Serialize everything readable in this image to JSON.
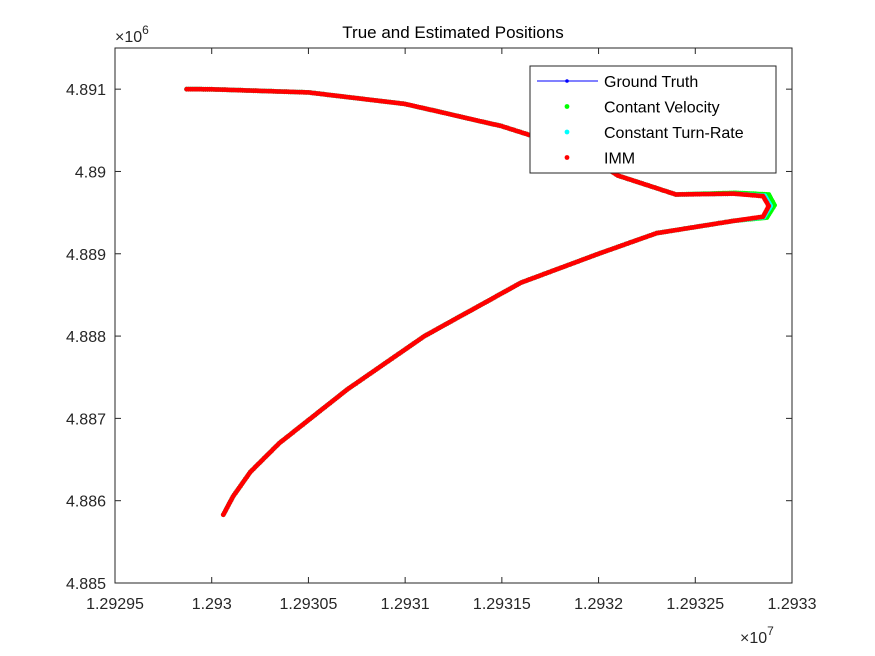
{
  "chart_data": {
    "type": "line",
    "title": "True and Estimated Positions",
    "xlabel": "",
    "ylabel": "",
    "x_exponent_label": "×10",
    "x_exponent_power": "7",
    "y_exponent_label": "×10",
    "y_exponent_power": "6",
    "xlim": [
      12929500.0,
      12933000.0
    ],
    "ylim": [
      4885000.0,
      4891500.0
    ],
    "x_ticks": [
      12929500.0,
      12930000.0,
      12930500.0,
      12931000.0,
      12931500.0,
      12932000.0,
      12932500.0,
      12933000.0
    ],
    "x_tick_labels": [
      "1.29295",
      "1.293",
      "1.29305",
      "1.2931",
      "1.29315",
      "1.2932",
      "1.29325",
      "1.2933"
    ],
    "y_ticks": [
      4885000.0,
      4886000.0,
      4887000.0,
      4888000.0,
      4889000.0,
      4890000.0,
      4891000.0
    ],
    "y_tick_labels": [
      "4.885",
      "4.886",
      "4.887",
      "4.888",
      "4.889",
      "4.89",
      "4.891"
    ],
    "grid": false,
    "legend_position": "top-right",
    "series": [
      {
        "name": "Ground Truth",
        "color": "#0000ff",
        "style": "line-with-dots",
        "x": [
          12929870,
          12930000,
          12930500,
          12931000,
          12931500,
          12931900,
          12932100,
          12932400,
          12932700,
          12932850,
          12932880,
          12932850,
          12932700,
          12932300,
          12932000,
          12931600,
          12931100,
          12930700,
          12930350,
          12930200,
          12930110,
          12930060
        ],
        "y": [
          4891000,
          4890998,
          4890960,
          4890820,
          4890550,
          4890250,
          4889950,
          4889720,
          4889730,
          4889700,
          4889580,
          4889450,
          4889400,
          4889250,
          4889000,
          4888650,
          4888000,
          4887350,
          4886700,
          4886350,
          4886050,
          4885830
        ]
      },
      {
        "name": "Contant Velocity",
        "color": "#00ff00",
        "style": "dots",
        "x": [
          12929870,
          12930000,
          12930500,
          12931000,
          12931500,
          12931900,
          12932100,
          12932400,
          12932710,
          12932880,
          12932910,
          12932870,
          12932700,
          12932300,
          12932000,
          12931600,
          12931100,
          12930700,
          12930350,
          12930200,
          12930110,
          12930060
        ],
        "y": [
          4891000,
          4890998,
          4890960,
          4890820,
          4890550,
          4890250,
          4889950,
          4889720,
          4889740,
          4889720,
          4889590,
          4889440,
          4889400,
          4889250,
          4889000,
          4888650,
          4888000,
          4887350,
          4886700,
          4886350,
          4886050,
          4885830
        ]
      },
      {
        "name": "Constant Turn-Rate",
        "color": "#00ffff",
        "style": "dots",
        "x": [
          12929870,
          12930000,
          12930500,
          12931000,
          12931500,
          12931900,
          12932100,
          12932400,
          12932700,
          12932860,
          12932890,
          12932855,
          12932700,
          12932300,
          12932000,
          12931600,
          12931100,
          12930700,
          12930350,
          12930200,
          12930110,
          12930060
        ],
        "y": [
          4891000,
          4890998,
          4890960,
          4890820,
          4890550,
          4890250,
          4889950,
          4889720,
          4889730,
          4889705,
          4889580,
          4889445,
          4889400,
          4889250,
          4889000,
          4888650,
          4888000,
          4887350,
          4886700,
          4886350,
          4886050,
          4885830
        ]
      },
      {
        "name": "IMM",
        "color": "#ff0000",
        "style": "dots",
        "x": [
          12929870,
          12930000,
          12930500,
          12931000,
          12931500,
          12931900,
          12932100,
          12932400,
          12932700,
          12932850,
          12932880,
          12932850,
          12932700,
          12932300,
          12932000,
          12931600,
          12931100,
          12930700,
          12930350,
          12930200,
          12930110,
          12930060
        ],
        "y": [
          4891000,
          4890998,
          4890960,
          4890820,
          4890550,
          4890250,
          4889950,
          4889720,
          4889730,
          4889700,
          4889580,
          4889450,
          4889400,
          4889250,
          4889000,
          4888650,
          4888000,
          4887350,
          4886700,
          4886350,
          4886050,
          4885830
        ]
      }
    ]
  }
}
